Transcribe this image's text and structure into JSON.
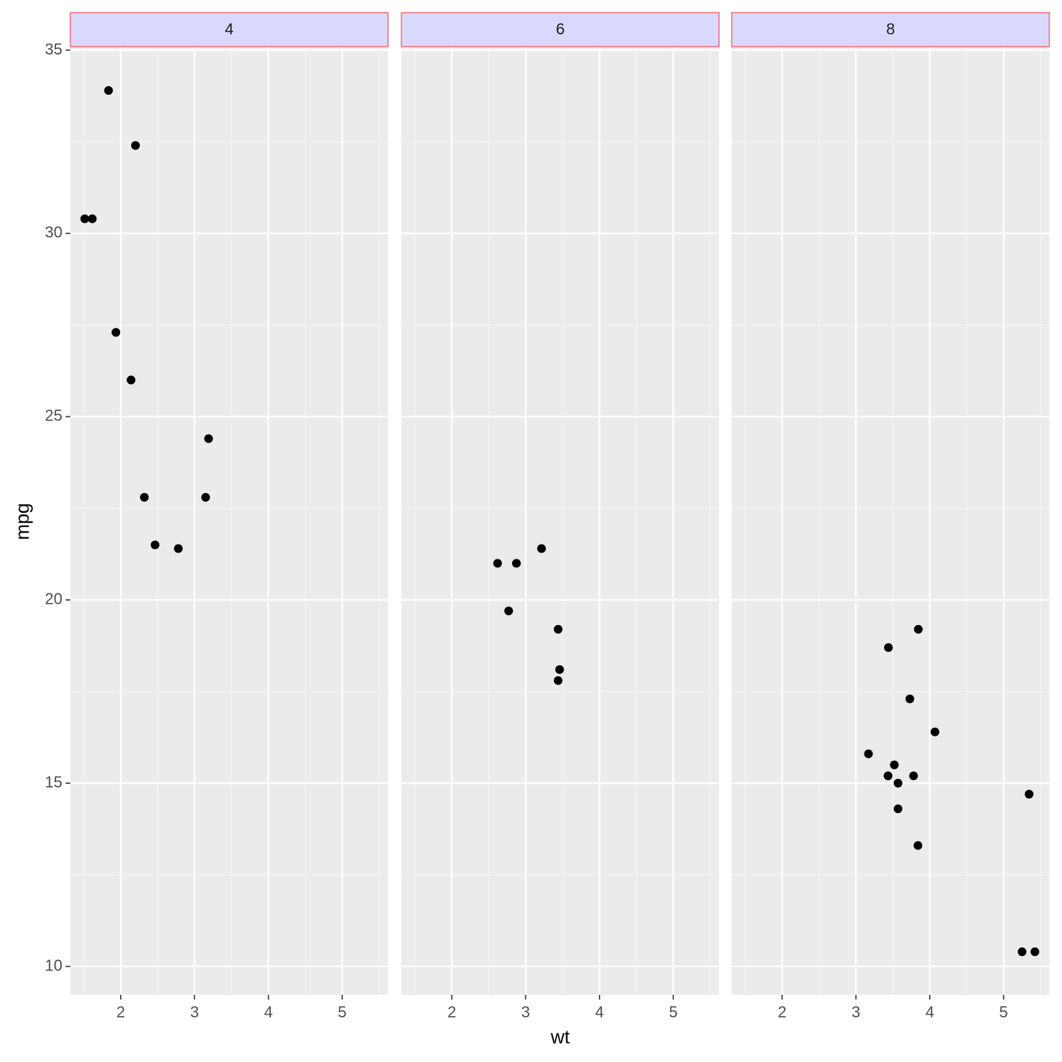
{
  "chart_data": [
    {
      "type": "scatter",
      "title": "4",
      "color": "#000000",
      "grid": true,
      "x": [
        2.32,
        3.19,
        3.15,
        2.2,
        1.615,
        1.835,
        2.465,
        1.935,
        2.14,
        1.513,
        2.78
      ],
      "y": [
        22.8,
        24.4,
        22.8,
        32.4,
        30.4,
        33.9,
        21.5,
        27.3,
        26.0,
        30.4,
        21.4
      ],
      "xlim": [
        1.3175,
        5.6196
      ],
      "ylim": [
        9.225,
        35.075
      ],
      "xticks": [
        2,
        3,
        4,
        5
      ],
      "yticks": [
        10,
        15,
        20,
        25,
        30,
        35
      ]
    },
    {
      "type": "scatter",
      "title": "6",
      "color": "#000000",
      "grid": true,
      "x": [
        2.62,
        2.875,
        3.215,
        3.46,
        3.44,
        3.44,
        2.77
      ],
      "y": [
        21.0,
        21.0,
        21.4,
        18.1,
        19.2,
        17.8,
        19.7
      ],
      "xlim": [
        1.3175,
        5.6196
      ],
      "ylim": [
        9.225,
        35.075
      ],
      "xticks": [
        2,
        3,
        4,
        5
      ],
      "yticks": [
        10,
        15,
        20,
        25,
        30,
        35
      ]
    },
    {
      "type": "scatter",
      "title": "8",
      "color": "#000000",
      "grid": true,
      "x": [
        3.44,
        3.57,
        4.07,
        3.73,
        3.78,
        5.25,
        5.424,
        5.345,
        3.52,
        3.435,
        3.84,
        3.845,
        3.17,
        3.57
      ],
      "y": [
        18.7,
        14.3,
        16.4,
        17.3,
        15.2,
        10.4,
        10.4,
        14.7,
        15.5,
        15.2,
        13.3,
        19.2,
        15.8,
        15.0
      ],
      "xlim": [
        1.3175,
        5.6196
      ],
      "ylim": [
        9.225,
        35.075
      ],
      "xticks": [
        2,
        3,
        4,
        5
      ],
      "yticks": [
        10,
        15,
        20,
        25,
        30,
        35
      ]
    }
  ],
  "x_label": "wt",
  "y_label": "mpg"
}
